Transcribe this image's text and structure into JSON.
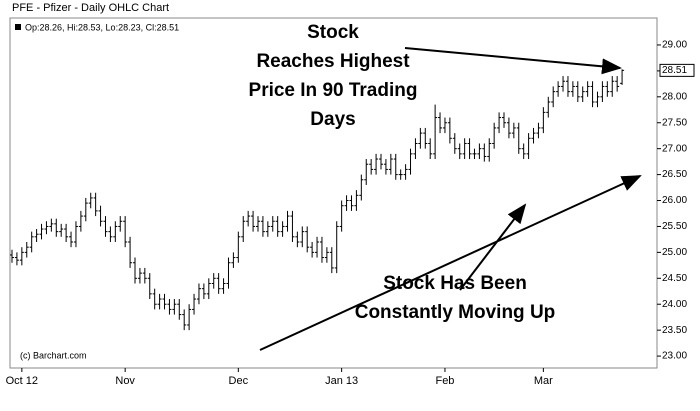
{
  "chart_data": {
    "type": "ohlc",
    "title": "PFE - Pfizer - Daily OHLC Chart",
    "legend_text": "Op:28.26, Hi:28.53, Lo:28.23, Cl:28.51",
    "copyright": "(c) Barchart.com",
    "annotations": [
      {
        "lines": [
          "Stock",
          "Reaches Highest",
          "Price In 90 Trading",
          "Days"
        ]
      },
      {
        "lines": [
          "Stock Has Been",
          "Constantly Moving Up"
        ]
      }
    ],
    "color": "#000000",
    "ylim": [
      22.77,
      29.52
    ],
    "yticks": [
      {
        "value": 23,
        "label": "23.00"
      },
      {
        "value": 23.5,
        "label": "23.50"
      },
      {
        "value": 24,
        "label": "24.00"
      },
      {
        "value": 24.5,
        "label": "24.50"
      },
      {
        "value": 25,
        "label": "25.00"
      },
      {
        "value": 25.5,
        "label": "25.50"
      },
      {
        "value": 26,
        "label": "26.00"
      },
      {
        "value": 26.5,
        "label": "26.50"
      },
      {
        "value": 27,
        "label": "27.00"
      },
      {
        "value": 27.5,
        "label": "27.50"
      },
      {
        "value": 28,
        "label": "28.00"
      },
      {
        "value": 28.5,
        "label": "28.50"
      },
      {
        "value": 29,
        "label": "29.00"
      }
    ],
    "categories": [
      null,
      null,
      "Oct 12",
      null,
      null,
      null,
      null,
      null,
      null,
      null,
      null,
      null,
      null,
      null,
      null,
      null,
      null,
      null,
      null,
      null,
      null,
      null,
      null,
      "Nov",
      null,
      null,
      null,
      null,
      null,
      null,
      null,
      null,
      null,
      null,
      null,
      null,
      null,
      null,
      null,
      null,
      null,
      null,
      null,
      null,
      null,
      null,
      "Dec",
      null,
      null,
      null,
      null,
      null,
      null,
      null,
      null,
      null,
      null,
      null,
      null,
      null,
      null,
      null,
      null,
      null,
      null,
      null,
      null,
      "Jan 13",
      null,
      null,
      null,
      null,
      null,
      null,
      null,
      null,
      null,
      null,
      null,
      null,
      null,
      null,
      null,
      null,
      null,
      null,
      null,
      null,
      "Feb",
      null,
      null,
      null,
      null,
      null,
      null,
      null,
      null,
      null,
      null,
      null,
      null,
      null,
      null,
      null,
      null,
      null,
      null,
      null,
      "Mar",
      null,
      null,
      null,
      null,
      null,
      null,
      null,
      null,
      null,
      null,
      null,
      null,
      null,
      null,
      null,
      null
    ],
    "open": [
      24.95,
      24.9,
      24.85,
      25.0,
      25.1,
      25.3,
      25.35,
      25.45,
      25.5,
      25.55,
      25.4,
      25.45,
      25.3,
      25.2,
      25.5,
      25.7,
      25.95,
      26.05,
      25.8,
      25.6,
      25.4,
      25.3,
      25.5,
      25.6,
      25.2,
      24.8,
      24.5,
      24.6,
      24.5,
      24.2,
      24.0,
      24.1,
      24.0,
      23.9,
      24.0,
      23.8,
      23.6,
      23.9,
      24.1,
      24.3,
      24.2,
      24.4,
      24.5,
      24.3,
      24.4,
      24.8,
      24.9,
      25.3,
      25.6,
      25.7,
      25.5,
      25.6,
      25.4,
      25.5,
      25.6,
      25.4,
      25.5,
      25.7,
      25.3,
      25.2,
      25.4,
      25.1,
      25.0,
      25.2,
      24.9,
      25.0,
      24.7,
      25.5,
      25.9,
      26.0,
      25.9,
      26.1,
      26.4,
      26.7,
      26.6,
      26.8,
      26.7,
      26.6,
      26.8,
      26.5,
      26.5,
      26.6,
      26.9,
      27.1,
      27.3,
      27.1,
      26.9,
      27.6,
      27.4,
      27.5,
      27.2,
      27.0,
      26.9,
      27.1,
      26.9,
      26.9,
      27.0,
      26.85,
      27.1,
      27.4,
      27.6,
      27.5,
      27.3,
      27.4,
      27.0,
      26.9,
      27.2,
      27.3,
      27.4,
      27.7,
      27.9,
      28.1,
      28.2,
      28.3,
      28.1,
      28.2,
      28.0,
      28.1,
      28.2,
      27.9,
      28.0,
      28.2,
      28.1,
      28.3,
      28.26
    ],
    "high": [
      25.05,
      25.0,
      25.1,
      25.2,
      25.4,
      25.45,
      25.55,
      25.6,
      25.65,
      25.65,
      25.55,
      25.55,
      25.4,
      25.6,
      25.8,
      26.05,
      26.15,
      26.15,
      25.9,
      25.7,
      25.5,
      25.6,
      25.7,
      25.7,
      25.3,
      24.9,
      24.7,
      24.7,
      24.6,
      24.3,
      24.2,
      24.2,
      24.1,
      24.1,
      24.1,
      23.9,
      24.0,
      24.2,
      24.4,
      24.4,
      24.5,
      24.6,
      24.6,
      24.5,
      24.9,
      25.0,
      25.4,
      25.7,
      25.8,
      25.8,
      25.7,
      25.7,
      25.6,
      25.7,
      25.7,
      25.6,
      25.8,
      25.8,
      25.4,
      25.5,
      25.5,
      25.2,
      25.3,
      25.3,
      25.1,
      25.1,
      25.6,
      26.0,
      26.1,
      26.1,
      26.2,
      26.5,
      26.8,
      26.8,
      26.9,
      26.9,
      26.8,
      26.9,
      26.9,
      26.6,
      26.7,
      27.0,
      27.2,
      27.4,
      27.4,
      27.2,
      27.85,
      27.7,
      27.6,
      27.6,
      27.3,
      27.1,
      27.2,
      27.2,
      27.0,
      27.1,
      27.1,
      27.2,
      27.5,
      27.7,
      27.7,
      27.6,
      27.5,
      27.5,
      27.1,
      27.3,
      27.4,
      27.5,
      27.8,
      28.0,
      28.2,
      28.3,
      28.4,
      28.4,
      28.3,
      28.3,
      28.2,
      28.3,
      28.3,
      28.1,
      28.3,
      28.3,
      28.4,
      28.4,
      28.53
    ],
    "low": [
      24.8,
      24.75,
      24.75,
      24.9,
      25.0,
      25.2,
      25.25,
      25.35,
      25.4,
      25.3,
      25.3,
      25.2,
      25.1,
      25.1,
      25.4,
      25.6,
      25.85,
      25.7,
      25.5,
      25.3,
      25.2,
      25.2,
      25.4,
      25.1,
      24.7,
      24.4,
      24.4,
      24.4,
      24.1,
      23.9,
      23.9,
      23.9,
      23.8,
      23.8,
      23.7,
      23.5,
      23.5,
      23.8,
      24.0,
      24.1,
      24.1,
      24.3,
      24.2,
      24.2,
      24.3,
      24.7,
      24.8,
      25.2,
      25.5,
      25.4,
      25.4,
      25.3,
      25.3,
      25.4,
      25.3,
      25.3,
      25.4,
      25.2,
      25.1,
      25.1,
      25.0,
      24.9,
      24.9,
      24.8,
      24.8,
      24.6,
      24.6,
      25.4,
      25.8,
      25.8,
      25.8,
      26.0,
      26.3,
      26.5,
      26.5,
      26.6,
      26.5,
      26.5,
      26.4,
      26.4,
      26.4,
      26.5,
      26.8,
      27.0,
      27.0,
      26.8,
      26.8,
      27.3,
      27.3,
      27.1,
      26.9,
      26.8,
      26.8,
      26.8,
      26.8,
      26.8,
      26.75,
      26.75,
      27.0,
      27.3,
      27.4,
      27.2,
      27.2,
      26.9,
      26.8,
      26.8,
      27.1,
      27.2,
      27.3,
      27.6,
      27.8,
      28.0,
      28.1,
      28.0,
      28.0,
      27.9,
      27.9,
      28.0,
      27.8,
      27.8,
      27.9,
      28.0,
      28.0,
      28.1,
      28.23
    ],
    "close": [
      24.9,
      24.85,
      25.0,
      25.1,
      25.3,
      25.35,
      25.45,
      25.5,
      25.55,
      25.4,
      25.45,
      25.3,
      25.2,
      25.5,
      25.7,
      25.95,
      26.05,
      25.8,
      25.6,
      25.4,
      25.3,
      25.5,
      25.6,
      25.2,
      24.8,
      24.5,
      24.6,
      24.5,
      24.2,
      24.0,
      24.1,
      24.0,
      23.9,
      24.0,
      23.8,
      23.6,
      23.9,
      24.1,
      24.3,
      24.2,
      24.4,
      24.5,
      24.3,
      24.4,
      24.8,
      24.9,
      25.3,
      25.6,
      25.7,
      25.5,
      25.6,
      25.4,
      25.5,
      25.6,
      25.4,
      25.5,
      25.7,
      25.3,
      25.2,
      25.4,
      25.1,
      25.0,
      25.2,
      24.9,
      25.0,
      24.7,
      25.5,
      25.9,
      26.0,
      25.9,
      26.1,
      26.4,
      26.7,
      26.6,
      26.8,
      26.7,
      26.6,
      26.8,
      26.5,
      26.5,
      26.6,
      26.9,
      27.1,
      27.3,
      27.1,
      26.9,
      27.6,
      27.4,
      27.5,
      27.2,
      27.0,
      26.9,
      27.1,
      26.9,
      26.9,
      27.0,
      26.85,
      27.1,
      27.4,
      27.6,
      27.5,
      27.3,
      27.4,
      27.0,
      26.9,
      27.2,
      27.3,
      27.4,
      27.7,
      27.9,
      28.1,
      28.2,
      28.3,
      28.1,
      28.2,
      28.0,
      28.1,
      28.2,
      27.9,
      28.0,
      28.2,
      28.1,
      28.3,
      28.2,
      28.51
    ]
  }
}
